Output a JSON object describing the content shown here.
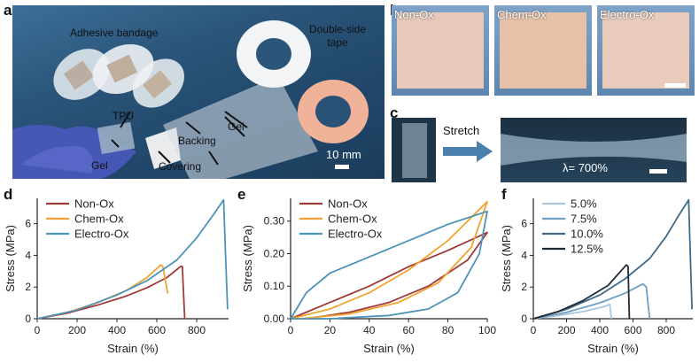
{
  "panels": {
    "a": {
      "label": "a",
      "annotations": {
        "adhesive_bandage": "Adhesive bandage",
        "double_side_tape": "Double-side\ntape",
        "tpu": "TPU",
        "gel_left": "Gel",
        "gel_right": "Gel",
        "backing": "Backing",
        "covering": "Covering",
        "scale": "10 mm"
      }
    },
    "b": {
      "label": "b",
      "samples": [
        "Non-Ox",
        "Chem-Ox",
        "Electro-Ox"
      ]
    },
    "c": {
      "label": "c",
      "arrow_label": "Stretch",
      "strain_label": "λ= 700%"
    }
  },
  "chart_data": [
    {
      "panel": "d",
      "type": "line",
      "xlabel": "Strain (%)",
      "ylabel": "Stress (MPa)",
      "xlim": [
        0,
        960
      ],
      "ylim": [
        0,
        7.6
      ],
      "xticks": [
        0,
        200,
        400,
        600,
        800
      ],
      "yticks": [
        0,
        2,
        4,
        6
      ],
      "legend_position": "top-left",
      "series": [
        {
          "name": "Non-Ox",
          "color": "#9e3b38",
          "points": [
            [
              0,
              0
            ],
            [
              150,
              0.35
            ],
            [
              300,
              0.85
            ],
            [
              450,
              1.45
            ],
            [
              550,
              1.95
            ],
            [
              650,
              2.6
            ],
            [
              720,
              3.3
            ],
            [
              728,
              3.3
            ],
            [
              740,
              0
            ]
          ]
        },
        {
          "name": "Chem-Ox",
          "color": "#f0a330",
          "points": [
            [
              0,
              0
            ],
            [
              150,
              0.4
            ],
            [
              300,
              1.0
            ],
            [
              450,
              1.8
            ],
            [
              550,
              2.6
            ],
            [
              620,
              3.4
            ],
            [
              630,
              3.3
            ],
            [
              655,
              1.6
            ]
          ]
        },
        {
          "name": "Electro-Ox",
          "color": "#4d92b8",
          "points": [
            [
              0,
              0
            ],
            [
              200,
              0.55
            ],
            [
              400,
              1.5
            ],
            [
              550,
              2.4
            ],
            [
              700,
              3.7
            ],
            [
              800,
              5.1
            ],
            [
              880,
              6.5
            ],
            [
              935,
              7.5
            ],
            [
              945,
              4.0
            ],
            [
              955,
              0.6
            ]
          ]
        }
      ]
    },
    {
      "panel": "e",
      "type": "line",
      "xlabel": "Strain (%)",
      "ylabel": "Stress (MPa)",
      "xlim": [
        0,
        100
      ],
      "ylim": [
        0,
        0.37
      ],
      "xticks": [
        0,
        20,
        40,
        60,
        80,
        100
      ],
      "yticks": [
        0.0,
        0.1,
        0.2,
        0.3
      ],
      "ytick_labels": [
        "0.00",
        "0.10",
        "0.20",
        "0.30"
      ],
      "legend_position": "top-left",
      "series": [
        {
          "name": "Non-Ox",
          "color": "#9e3b38",
          "points": [
            [
              0,
              0
            ],
            [
              20,
              0.05
            ],
            [
              40,
              0.1
            ],
            [
              60,
              0.16
            ],
            [
              80,
              0.21
            ],
            [
              100,
              0.265
            ],
            [
              90,
              0.18
            ],
            [
              70,
              0.1
            ],
            [
              50,
              0.05
            ],
            [
              30,
              0.02
            ],
            [
              8,
              0
            ],
            [
              0,
              0
            ]
          ]
        },
        {
          "name": "Chem-Ox",
          "color": "#f0a330",
          "points": [
            [
              0,
              0
            ],
            [
              20,
              0.03
            ],
            [
              40,
              0.08
            ],
            [
              60,
              0.15
            ],
            [
              80,
              0.24
            ],
            [
              100,
              0.36
            ],
            [
              92,
              0.22
            ],
            [
              75,
              0.11
            ],
            [
              55,
              0.05
            ],
            [
              30,
              0.015
            ],
            [
              5,
              0
            ],
            [
              0,
              0
            ]
          ]
        },
        {
          "name": "Electro-Ox",
          "color": "#4d92b8",
          "points": [
            [
              0,
              0
            ],
            [
              8,
              0.08
            ],
            [
              20,
              0.14
            ],
            [
              40,
              0.19
            ],
            [
              60,
              0.24
            ],
            [
              80,
              0.29
            ],
            [
              100,
              0.33
            ],
            [
              96,
              0.2
            ],
            [
              85,
              0.08
            ],
            [
              70,
              0.03
            ],
            [
              50,
              0.01
            ],
            [
              20,
              0.0
            ],
            [
              0,
              0
            ]
          ]
        }
      ]
    },
    {
      "panel": "f",
      "type": "line",
      "xlabel": "Strain (%)",
      "ylabel": "Stress (MPa)",
      "xlim": [
        0,
        960
      ],
      "ylim": [
        0,
        7.6
      ],
      "xticks": [
        0,
        200,
        400,
        600,
        800
      ],
      "yticks": [
        0,
        2,
        4,
        6
      ],
      "legend_position": "top-left",
      "series": [
        {
          "name": "5.0%",
          "color": "#a9c6dc",
          "points": [
            [
              0,
              0
            ],
            [
              150,
              0.2
            ],
            [
              300,
              0.45
            ],
            [
              420,
              0.75
            ],
            [
              460,
              0.9
            ],
            [
              470,
              0
            ]
          ]
        },
        {
          "name": "7.5%",
          "color": "#6f9fc2",
          "points": [
            [
              0,
              0
            ],
            [
              200,
              0.4
            ],
            [
              400,
              1.0
            ],
            [
              550,
              1.6
            ],
            [
              660,
              2.2
            ],
            [
              680,
              2.0
            ],
            [
              700,
              0
            ]
          ]
        },
        {
          "name": "10.0%",
          "color": "#3e6a8b",
          "points": [
            [
              0,
              0
            ],
            [
              200,
              0.6
            ],
            [
              400,
              1.5
            ],
            [
              550,
              2.5
            ],
            [
              700,
              3.8
            ],
            [
              800,
              5.2
            ],
            [
              880,
              6.6
            ],
            [
              935,
              7.5
            ],
            [
              945,
              4.0
            ],
            [
              955,
              0.6
            ]
          ]
        },
        {
          "name": "12.5%",
          "color": "#1f2a36",
          "points": [
            [
              0,
              0
            ],
            [
              150,
              0.45
            ],
            [
              300,
              1.15
            ],
            [
              450,
              2.1
            ],
            [
              560,
              3.4
            ],
            [
              570,
              3.3
            ],
            [
              578,
              0
            ]
          ]
        }
      ]
    }
  ]
}
